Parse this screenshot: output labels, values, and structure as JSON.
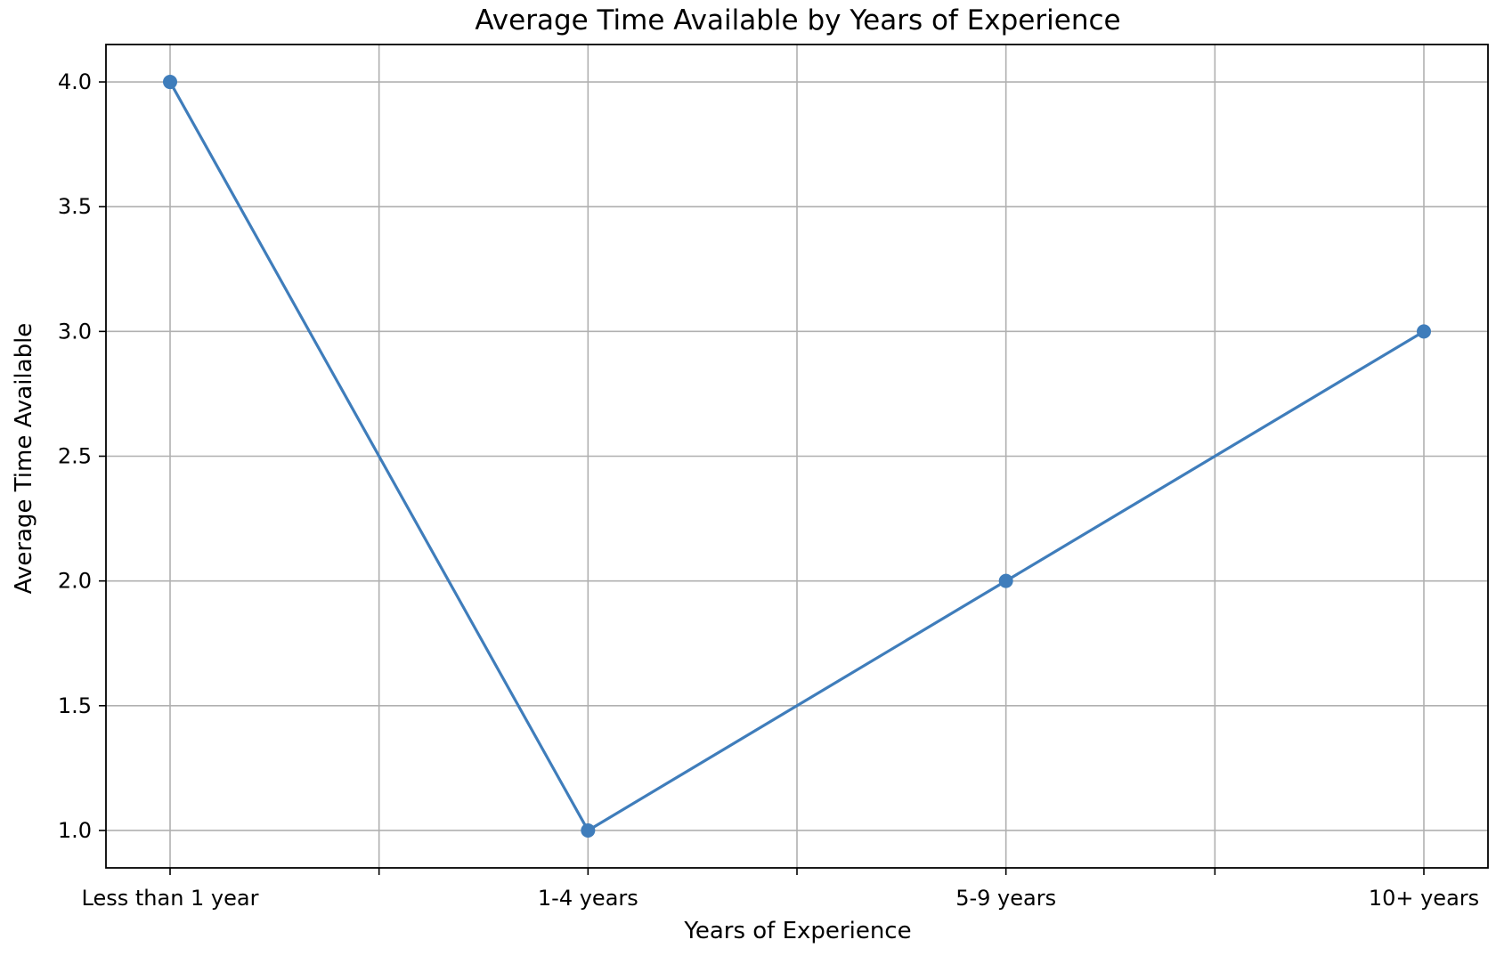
{
  "chart_data": {
    "type": "line",
    "title": "Average Time Available by Years of Experience",
    "xlabel": "Years of Experience",
    "ylabel": "Average Time Available",
    "categories": [
      "Less than 1 year",
      "1-4 years",
      "5-9 years",
      "10+ years"
    ],
    "values": [
      4.0,
      1.0,
      2.0,
      3.0
    ],
    "ylim": [
      0.85,
      4.15
    ],
    "yticks": [
      "1.0",
      "1.5",
      "2.0",
      "2.5",
      "3.0",
      "3.5",
      "4.0"
    ],
    "grid": true,
    "legend": "none",
    "line_color": "#3f7dbb",
    "marker": "circle"
  }
}
